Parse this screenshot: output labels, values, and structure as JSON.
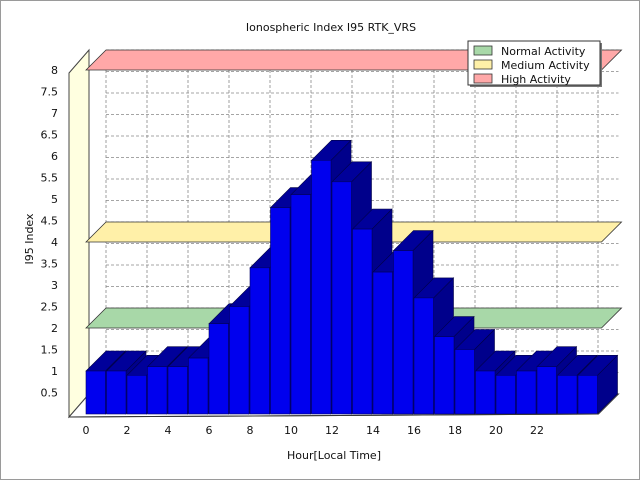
{
  "chart_data": {
    "type": "bar",
    "title": "Ionospheric Index I95 RTK_VRS",
    "xlabel": "Hour[Local Time]",
    "ylabel": "I95 Index",
    "ylim": [
      0,
      8
    ],
    "yticks": [
      "0.5",
      "1",
      "1.5",
      "2",
      "2.5",
      "3",
      "3.5",
      "4",
      "4.5",
      "5",
      "5.5",
      "6",
      "6.5",
      "7",
      "7.5",
      "8"
    ],
    "xticks": [
      "0",
      "2",
      "4",
      "6",
      "8",
      "10",
      "12",
      "14",
      "16",
      "18",
      "20",
      "22"
    ],
    "grid": true,
    "legend_position": "top-right",
    "hours": [
      0,
      1,
      2,
      3,
      4,
      5,
      6,
      7,
      8,
      9,
      10,
      11,
      12,
      13,
      14,
      15,
      16,
      17,
      18,
      19,
      20,
      21,
      22,
      23,
      24
    ],
    "values": [
      1.0,
      1.0,
      0.9,
      1.1,
      1.1,
      1.3,
      2.1,
      2.5,
      3.4,
      4.8,
      5.1,
      5.9,
      5.4,
      4.3,
      3.3,
      3.8,
      2.7,
      1.8,
      1.5,
      1.0,
      0.9,
      1.0,
      1.1,
      0.9,
      0.9
    ],
    "bar_color": "#0000EE",
    "bands": [
      {
        "name": "Normal Activity",
        "level": 2,
        "color": "#A8D8A8"
      },
      {
        "name": "Medium Activity",
        "level": 4,
        "color": "#FFF0A8"
      },
      {
        "name": "High Activity",
        "level": 8,
        "color": "#FFA8A8"
      }
    ],
    "wall_color": "#FFFFE0"
  }
}
